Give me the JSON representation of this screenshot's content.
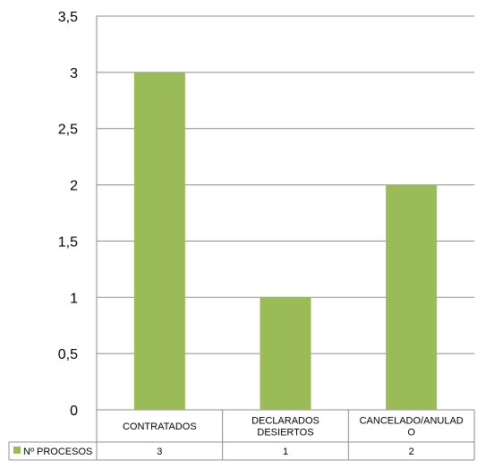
{
  "chart_data": {
    "type": "bar",
    "categories": [
      "CONTRATADOS",
      "DECLARADOS DESIERTOS",
      "CANCELADO/ANULADO"
    ],
    "category_label_lines": [
      [
        "CONTRATADOS"
      ],
      [
        "DECLARADOS",
        "DESIERTOS"
      ],
      [
        "CANCELADO/ANULAD",
        "O"
      ]
    ],
    "series": [
      {
        "name": "Nº PROCESOS",
        "values": [
          3,
          1,
          2
        ],
        "display_values": [
          "3",
          "1",
          "2"
        ],
        "color": "#9BBB59"
      }
    ],
    "yticks": [
      "0",
      "0,5",
      "1",
      "1,5",
      "2",
      "2,5",
      "3",
      "3,5"
    ],
    "ylim": [
      0,
      3.5
    ],
    "grid": true,
    "legend": "data-table-bottom",
    "title": "",
    "xlabel": "",
    "ylabel": ""
  }
}
